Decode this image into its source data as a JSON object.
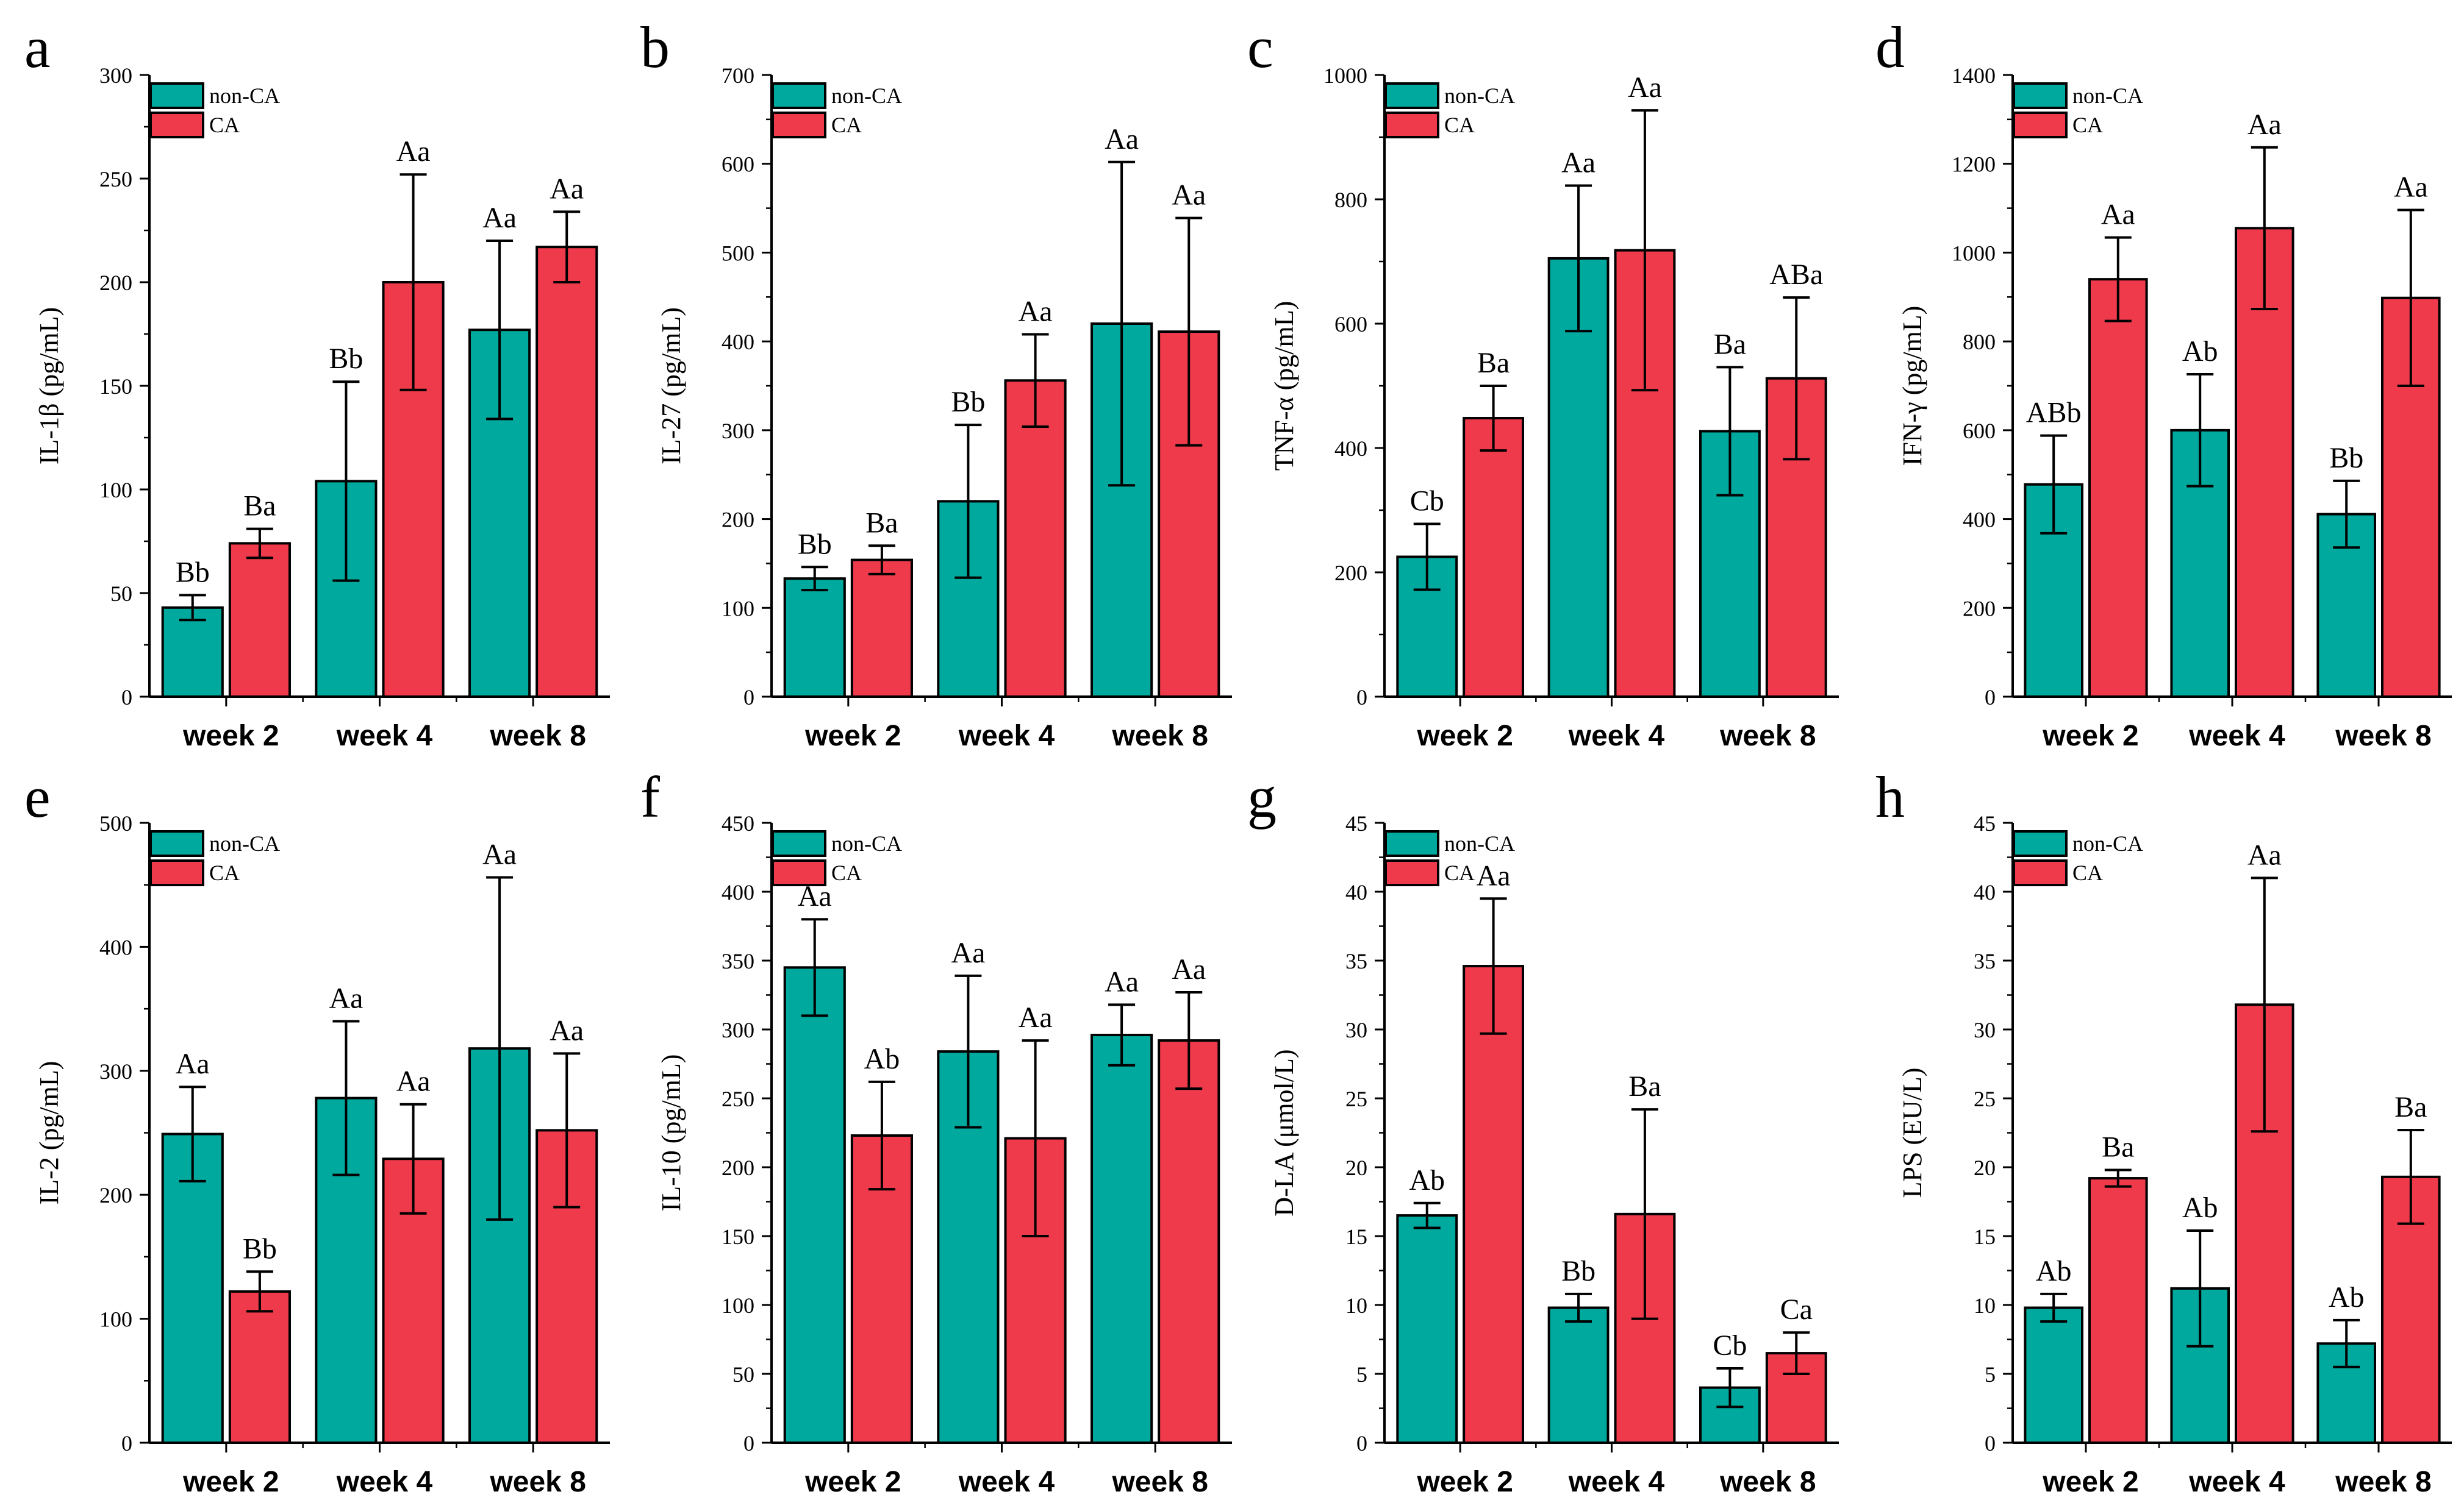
{
  "figure": {
    "legend": [
      {
        "label": "non-CA",
        "color": "#00a99d"
      },
      {
        "label": "CA",
        "color": "#ef3a4c"
      }
    ],
    "colors": {
      "non_ca": "#00a99d",
      "ca": "#ef3a4c",
      "axis": "#000000"
    }
  },
  "chart_data": [
    {
      "panel": "a",
      "type": "bar",
      "ylabel": "IL-1β (pg/mL)",
      "categories": [
        "week 2",
        "week 4",
        "week 8"
      ],
      "ylim": [
        0,
        300
      ],
      "yticks": [
        0,
        50,
        100,
        150,
        200,
        250,
        300
      ],
      "legend_placement": "top-left",
      "series": [
        {
          "name": "non-CA",
          "values": [
            43,
            104,
            177
          ],
          "errors": [
            6,
            48,
            43
          ],
          "labels": [
            "Bb",
            "Bb",
            "Aa"
          ]
        },
        {
          "name": "CA",
          "values": [
            74,
            200,
            217
          ],
          "errors": [
            7,
            52,
            17
          ],
          "labels": [
            "Ba",
            "Aa",
            "Aa"
          ]
        }
      ]
    },
    {
      "panel": "b",
      "type": "bar",
      "ylabel": "IL-27 (pg/mL)",
      "categories": [
        "week 2",
        "week 4",
        "week 8"
      ],
      "ylim": [
        0,
        700
      ],
      "yticks": [
        0,
        100,
        200,
        300,
        400,
        500,
        600,
        700
      ],
      "legend_placement": "top-left",
      "series": [
        {
          "name": "non-CA",
          "values": [
            133,
            220,
            420
          ],
          "errors": [
            13,
            86,
            182
          ],
          "labels": [
            "Bb",
            "Bb",
            "Aa"
          ]
        },
        {
          "name": "CA",
          "values": [
            154,
            356,
            411
          ],
          "errors": [
            16,
            52,
            128
          ],
          "labels": [
            "Ba",
            "Aa",
            "Aa"
          ]
        }
      ]
    },
    {
      "panel": "c",
      "type": "bar",
      "ylabel": "TNF-α (pg/mL)",
      "categories": [
        "week 2",
        "week 4",
        "week 8"
      ],
      "ylim": [
        0,
        1000
      ],
      "yticks": [
        0,
        200,
        400,
        600,
        800,
        1000
      ],
      "legend_placement": "top-left",
      "series": [
        {
          "name": "non-CA",
          "values": [
            225,
            705,
            427
          ],
          "errors": [
            53,
            117,
            103
          ],
          "labels": [
            "Cb",
            "Aa",
            "Ba"
          ]
        },
        {
          "name": "CA",
          "values": [
            448,
            718,
            512
          ],
          "errors": [
            52,
            225,
            130
          ],
          "labels": [
            "Ba",
            "Aa",
            "ABa"
          ]
        }
      ]
    },
    {
      "panel": "d",
      "type": "bar",
      "ylabel": "IFN-γ (pg/mL)",
      "categories": [
        "week 2",
        "week 4",
        "week 8"
      ],
      "ylim": [
        0,
        1400
      ],
      "yticks": [
        0,
        200,
        400,
        600,
        800,
        1000,
        1200,
        1400
      ],
      "legend_placement": "top-left",
      "series": [
        {
          "name": "non-CA",
          "values": [
            478,
            600,
            411
          ],
          "errors": [
            110,
            126,
            75
          ],
          "labels": [
            "ABb",
            "Ab",
            "Bb"
          ]
        },
        {
          "name": "CA",
          "values": [
            940,
            1055,
            898
          ],
          "errors": [
            94,
            182,
            198
          ],
          "labels": [
            "Aa",
            "Aa",
            "Aa"
          ]
        }
      ]
    },
    {
      "panel": "e",
      "type": "bar",
      "ylabel": "IL-2 (pg/mL)",
      "categories": [
        "week 2",
        "week 4",
        "week 8"
      ],
      "ylim": [
        0,
        500
      ],
      "yticks": [
        0,
        100,
        200,
        300,
        400,
        500
      ],
      "legend_placement": "top-left",
      "series": [
        {
          "name": "non-CA",
          "values": [
            249,
            278,
            318
          ],
          "errors": [
            38,
            62,
            138
          ],
          "labels": [
            "Aa",
            "Aa",
            "Aa"
          ]
        },
        {
          "name": "CA",
          "values": [
            122,
            229,
            252
          ],
          "errors": [
            16,
            44,
            62
          ],
          "labels": [
            "Bb",
            "Aa",
            "Aa"
          ]
        }
      ]
    },
    {
      "panel": "f",
      "type": "bar",
      "ylabel": "IL-10 (pg/mL)",
      "categories": [
        "week 2",
        "week 4",
        "week 8"
      ],
      "ylim": [
        0,
        450
      ],
      "yticks": [
        0,
        50,
        100,
        150,
        200,
        250,
        300,
        350,
        400,
        450
      ],
      "legend_placement": "top-left",
      "series": [
        {
          "name": "non-CA",
          "values": [
            345,
            284,
            296
          ],
          "errors": [
            35,
            55,
            22
          ],
          "labels": [
            "Aa",
            "Aa",
            "Aa"
          ]
        },
        {
          "name": "CA",
          "values": [
            223,
            221,
            292
          ],
          "errors": [
            39,
            71,
            35
          ],
          "labels": [
            "Ab",
            "Aa",
            "Aa"
          ]
        }
      ]
    },
    {
      "panel": "g",
      "type": "bar",
      "ylabel": "D-LA (μmol/L)",
      "categories": [
        "week 2",
        "week 4",
        "week 8"
      ],
      "ylim": [
        0,
        45
      ],
      "yticks": [
        0,
        5,
        10,
        15,
        20,
        25,
        30,
        35,
        40,
        45
      ],
      "legend_placement": "top-left",
      "series": [
        {
          "name": "non-CA",
          "values": [
            16.5,
            9.8,
            4.0
          ],
          "errors": [
            0.9,
            1.0,
            1.4
          ],
          "labels": [
            "Ab",
            "Bb",
            "Cb"
          ]
        },
        {
          "name": "CA",
          "values": [
            34.6,
            16.6,
            6.5
          ],
          "errors": [
            4.9,
            7.6,
            1.5
          ],
          "labels": [
            "Aa",
            "Ba",
            "Ca"
          ]
        }
      ]
    },
    {
      "panel": "h",
      "type": "bar",
      "ylabel": "LPS (EU/L)",
      "categories": [
        "week 2",
        "week 4",
        "week 8"
      ],
      "ylim": [
        0,
        45
      ],
      "yticks": [
        0,
        5,
        10,
        15,
        20,
        25,
        30,
        35,
        40,
        45
      ],
      "legend_placement": "top-left",
      "series": [
        {
          "name": "non-CA",
          "values": [
            9.8,
            11.2,
            7.2
          ],
          "errors": [
            1.0,
            4.2,
            1.7
          ],
          "labels": [
            "Ab",
            "Ab",
            "Ab"
          ]
        },
        {
          "name": "CA",
          "values": [
            19.2,
            31.8,
            19.3
          ],
          "errors": [
            0.6,
            9.2,
            3.4
          ],
          "labels": [
            "Ba",
            "Aa",
            "Ba"
          ]
        }
      ]
    }
  ]
}
